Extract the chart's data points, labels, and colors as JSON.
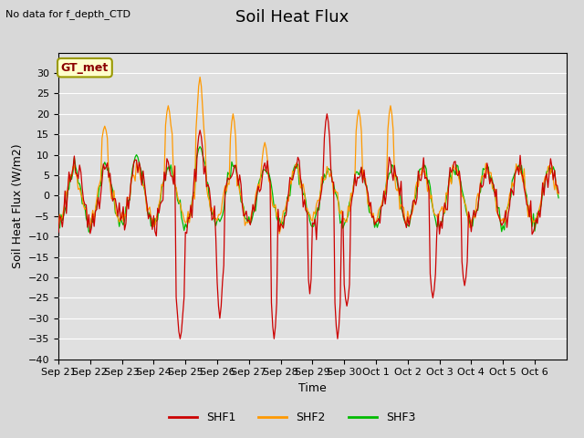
{
  "title": "Soil Heat Flux",
  "subtitle": "No data for f_depth_CTD",
  "ylabel": "Soil Heat Flux (W/m2)",
  "xlabel": "Time",
  "legend_label": "GT_met",
  "series_labels": [
    "SHF1",
    "SHF2",
    "SHF3"
  ],
  "series_colors": [
    "#cc0000",
    "#ff9900",
    "#00bb00"
  ],
  "ylim": [
    -40,
    35
  ],
  "yticks": [
    -40,
    -35,
    -30,
    -25,
    -20,
    -15,
    -10,
    -5,
    0,
    5,
    10,
    15,
    20,
    25,
    30
  ],
  "bg_color": "#d8d8d8",
  "plot_bg_color": "#e0e0e0",
  "title_fontsize": 13,
  "axis_fontsize": 9,
  "tick_fontsize": 8,
  "legend_fontsize": 9
}
